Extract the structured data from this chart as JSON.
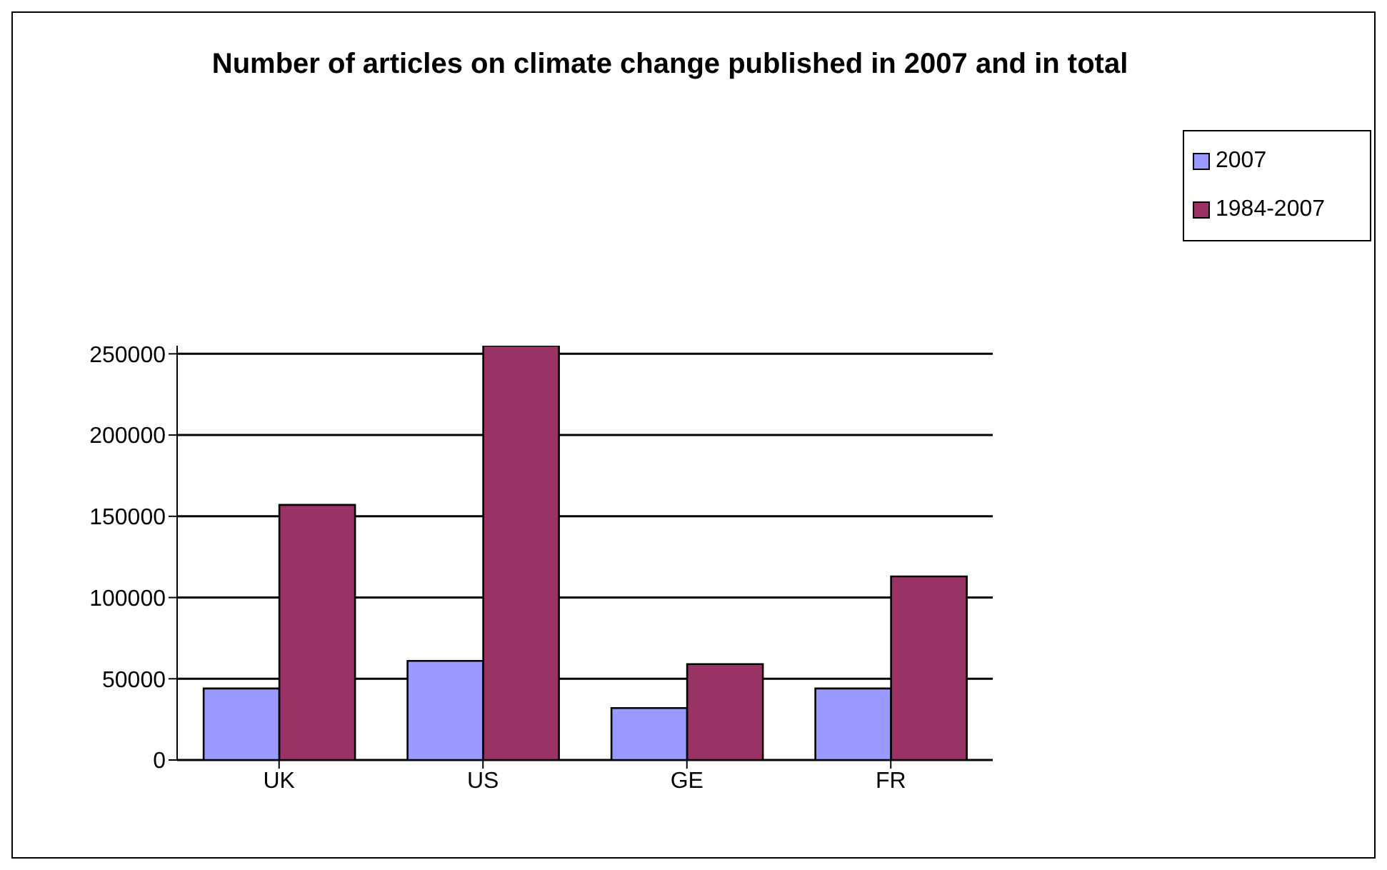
{
  "chart_data": {
    "type": "bar",
    "title": "Number of articles on climate change published in 2007 and in total",
    "categories": [
      "UK",
      "US",
      "GE",
      "FR"
    ],
    "series": [
      {
        "name": "2007",
        "color": "#9999ff",
        "values": [
          44000,
          61000,
          32000,
          44000
        ]
      },
      {
        "name": "1984-2007",
        "color": "#993366",
        "values": [
          157000,
          255000,
          59000,
          113000
        ]
      }
    ],
    "ylim": [
      0,
      255000
    ],
    "yticks": [
      0,
      50000,
      100000,
      150000,
      200000,
      250000
    ],
    "grid": "y",
    "legend": "right"
  }
}
